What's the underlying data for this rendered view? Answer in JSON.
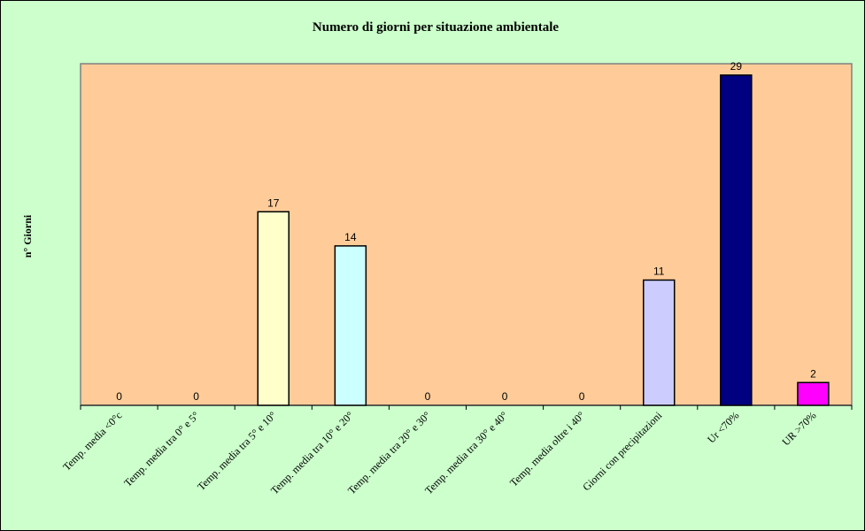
{
  "colors": {
    "page_bg": "#ccffcc",
    "plot_bg": "#ffcc99"
  },
  "chart_data": {
    "type": "bar",
    "title": "Numero di giorni per situazione ambientale",
    "xlabel": "",
    "ylabel": "n° Giorni",
    "ylim": [
      0,
      30
    ],
    "grid": false,
    "legend": "none",
    "categories": [
      "Temp. media <0°c",
      "Temp. media tra 0° e 5°",
      "Temp. media tra 5° e 10°",
      "Temp. media tra 10° e 20°",
      "Temp. media tra 20° e 30°",
      "Temp. media tra 30° e 40°",
      "Temp. media oltre i 40°",
      "Giorni con precipitazioni",
      "Ur <70%",
      "UR >70%"
    ],
    "values": [
      0,
      0,
      17,
      14,
      0,
      0,
      0,
      11,
      29,
      2
    ],
    "bar_colors": [
      "#ffffcc",
      "#ffffcc",
      "#ffffcc",
      "#ccffff",
      "#ffffcc",
      "#ffffcc",
      "#ffffcc",
      "#ccccff",
      "#000080",
      "#ff00ff"
    ]
  }
}
